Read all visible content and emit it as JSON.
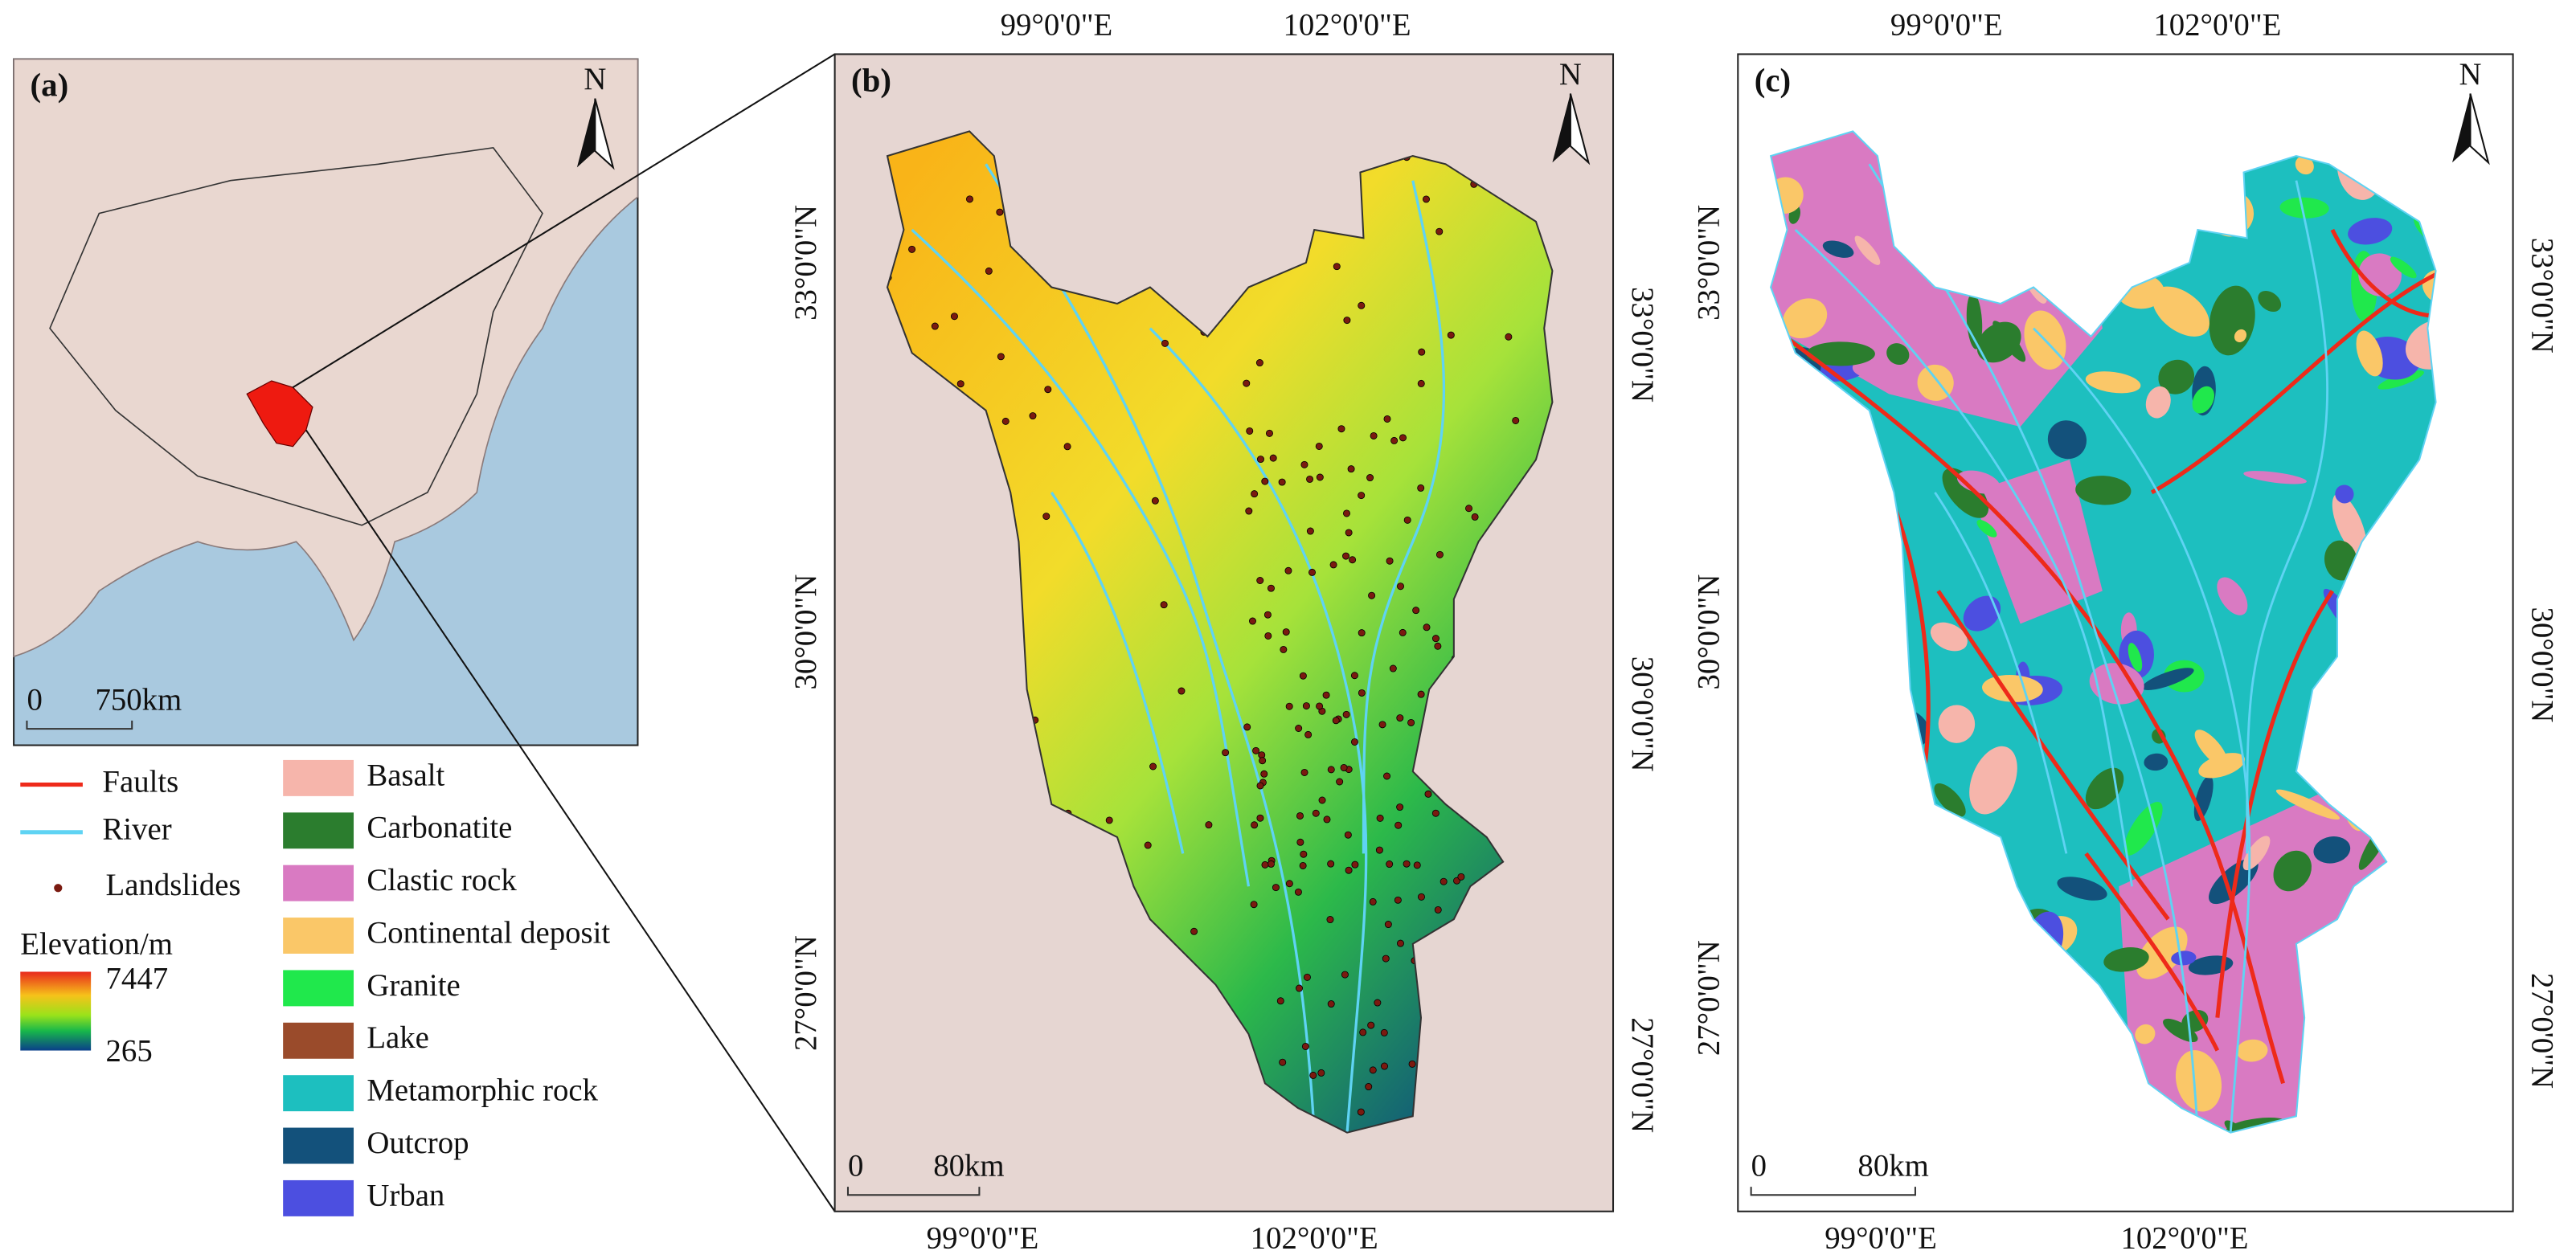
{
  "panels": {
    "a": {
      "label": "(a)",
      "north": "N",
      "scale": [
        "0",
        "750km"
      ]
    },
    "b": {
      "label": "(b)",
      "north": "N",
      "scale": [
        "0",
        "80km"
      ],
      "lon_top": [
        "99°0'0\"E",
        "102°0'0\"E"
      ],
      "lon_bottom": [
        "99°0'0\"E",
        "102°0'0\"E"
      ],
      "lat_left": [
        "33°0'0\"N",
        "30°0'0\"N",
        "27°0'0\"N"
      ],
      "lat_right": [
        "33°0'0\"N",
        "30°0'0\"N",
        "27°0'0\"N"
      ]
    },
    "c": {
      "label": "(c)",
      "north": "N",
      "scale": [
        "0",
        "80km"
      ],
      "lon_top": [
        "99°0'0\"E",
        "102°0'0\"E"
      ],
      "lon_bottom": [
        "99°0'0\"E",
        "102°0'0\"E"
      ],
      "lat_left": [
        "33°0'0\"N",
        "30°0'0\"N",
        "27°0'0\"N"
      ],
      "lat_right": [
        "33°0'0\"N",
        "30°0'0\"N",
        "27°0'0\"N"
      ]
    }
  },
  "legend": {
    "lines": [
      {
        "label": "Faults",
        "color": "#ee2a1a"
      },
      {
        "label": "River",
        "color": "#5fd3f3"
      },
      {
        "label": "Landslides",
        "color": "#7a1a10"
      }
    ],
    "elevation": {
      "title": "Elevation/m",
      "max": "7447",
      "min": "265"
    },
    "geology": [
      {
        "label": "Basalt",
        "color": "#f6b5ab"
      },
      {
        "label": "Carbonatite",
        "color": "#2b7d2e"
      },
      {
        "label": "Clastic rock",
        "color": "#d97ac2"
      },
      {
        "label": "Continental deposit",
        "color": "#fac768"
      },
      {
        "label": "Granite",
        "color": "#20e84c"
      },
      {
        "label": "Lake",
        "color": "#9a4b2b"
      },
      {
        "label": "Metamorphic rock",
        "color": "#1dbfbf"
      },
      {
        "label": "Outcrop",
        "color": "#13517b"
      },
      {
        "label": "Urban",
        "color": "#4c4fe0"
      }
    ]
  }
}
